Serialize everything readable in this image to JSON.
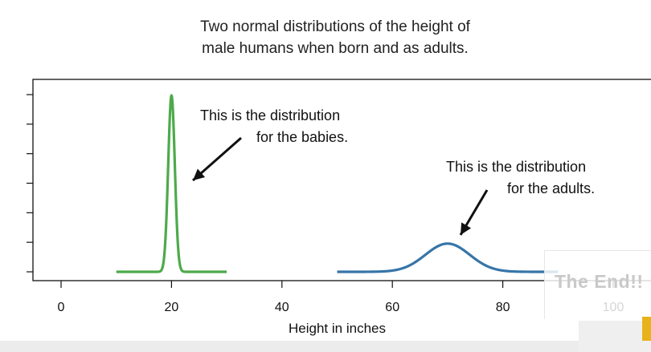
{
  "title_lines": [
    "Two normal distributions of the height of",
    "male humans when born and as adults."
  ],
  "chart_data": {
    "type": "line",
    "title": "Two normal distributions of the height of male humans when born and as adults.",
    "xlabel": "Height in inches",
    "ylabel": "",
    "xlim": [
      0,
      100
    ],
    "x_ticks": [
      0,
      20,
      40,
      60,
      80,
      100
    ],
    "y_tick_count": 7,
    "grid": false,
    "series": [
      {
        "name": "babies",
        "color": "#4daa4b",
        "mean": 20,
        "sd": 0.6,
        "x_range": [
          10,
          30
        ],
        "peak_relative": 1.0
      },
      {
        "name": "adults",
        "color": "#3675a8",
        "mean": 70,
        "sd": 4,
        "x_range": [
          50,
          90
        ],
        "peak_relative": 0.16
      }
    ],
    "annotations": [
      {
        "lines": [
          "This is the distribution",
          "for the babies."
        ],
        "points_to": "babies"
      },
      {
        "lines": [
          "This is the distribution",
          "for the adults."
        ],
        "points_to": "adults"
      }
    ]
  },
  "overlay": {
    "text": "The End!!"
  }
}
